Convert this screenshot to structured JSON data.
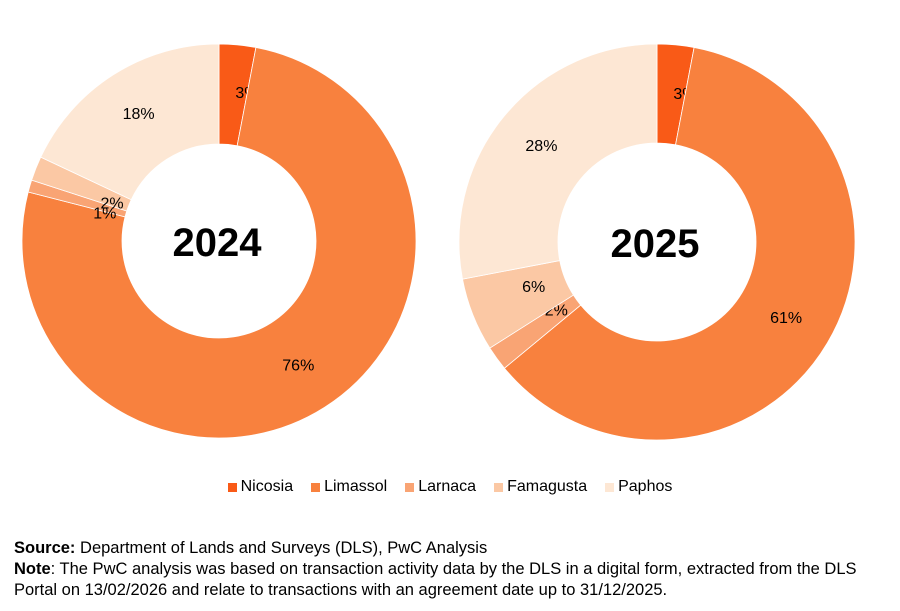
{
  "chart_data": [
    {
      "type": "pie",
      "center_label": "2024",
      "categories": [
        "Nicosia",
        "Limassol",
        "Larnaca",
        "Famagusta",
        "Paphos"
      ],
      "values": [
        3,
        76,
        1,
        2,
        18
      ],
      "labels": [
        "3%",
        "76%",
        "1%",
        "2%",
        "18%"
      ],
      "colors": [
        "#f95a17",
        "#f8813e",
        "#f9a474",
        "#fbc8a4",
        "#fde7d4"
      ]
    },
    {
      "type": "pie",
      "center_label": "2025",
      "categories": [
        "Nicosia",
        "Limassol",
        "Larnaca",
        "Famagusta",
        "Paphos"
      ],
      "values": [
        3,
        61,
        2,
        6,
        28
      ],
      "labels": [
        "3%",
        "61%",
        "2%",
        "6%",
        "28%"
      ],
      "colors": [
        "#f95a17",
        "#f8813e",
        "#f9a474",
        "#fbc8a4",
        "#fde7d4"
      ]
    }
  ],
  "legend": [
    {
      "label": "Nicosia",
      "color": "#f95a17"
    },
    {
      "label": "Limassol",
      "color": "#f8813e"
    },
    {
      "label": "Larnaca",
      "color": "#f9a474"
    },
    {
      "label": "Famagusta",
      "color": "#fbc8a4"
    },
    {
      "label": "Paphos",
      "color": "#fde7d4"
    }
  ],
  "footer": {
    "source_label": "Source:",
    "source_text": " Department of Lands and Surveys (DLS), PwC Analysis",
    "note_label": "Note",
    "note_text": ": The PwC analysis was based on transaction activity data by the DLS in a digital form, extracted from the DLS Portal on 13/02/2026 and relate to transactions with an agreement date up to 31/12/2025."
  }
}
